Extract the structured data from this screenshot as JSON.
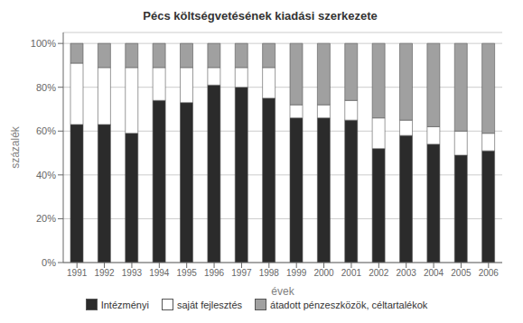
{
  "chart_data": {
    "type": "bar",
    "stacked": true,
    "title": "Pécs költségvetésének kiadási szerkezete",
    "xlabel": "évek",
    "ylabel": "százalék",
    "categories": [
      "1991",
      "1992",
      "1993",
      "1994",
      "1995",
      "1996",
      "1997",
      "1998",
      "1999",
      "2000",
      "2001",
      "2002",
      "2003",
      "2004",
      "2005",
      "2006"
    ],
    "series": [
      {
        "name": "Intézményi",
        "color": "#2b2b2b",
        "values": [
          63,
          63,
          59,
          74,
          73,
          81,
          80,
          75,
          66,
          66,
          65,
          52,
          58,
          54,
          49,
          51
        ]
      },
      {
        "name": "saját fejlesztés",
        "color": "#ffffff",
        "values": [
          28,
          26,
          30,
          15,
          16,
          8,
          9,
          14,
          6,
          6,
          9,
          14,
          7,
          8,
          11,
          8
        ]
      },
      {
        "name": "átadott pénzeszközök, céltartalékok",
        "color": "#a0a0a0",
        "values": [
          9,
          11,
          11,
          11,
          11,
          11,
          11,
          11,
          28,
          28,
          26,
          34,
          35,
          38,
          40,
          41
        ]
      }
    ],
    "ylim": [
      0,
      105
    ],
    "yticks": [
      {
        "value": 0,
        "label": "0%"
      },
      {
        "value": 20,
        "label": "20%"
      },
      {
        "value": 40,
        "label": "40%"
      },
      {
        "value": 60,
        "label": "60%"
      },
      {
        "value": 80,
        "label": "80%"
      },
      {
        "value": 100,
        "label": "100%"
      }
    ],
    "grid": true,
    "legend": "bottom"
  }
}
